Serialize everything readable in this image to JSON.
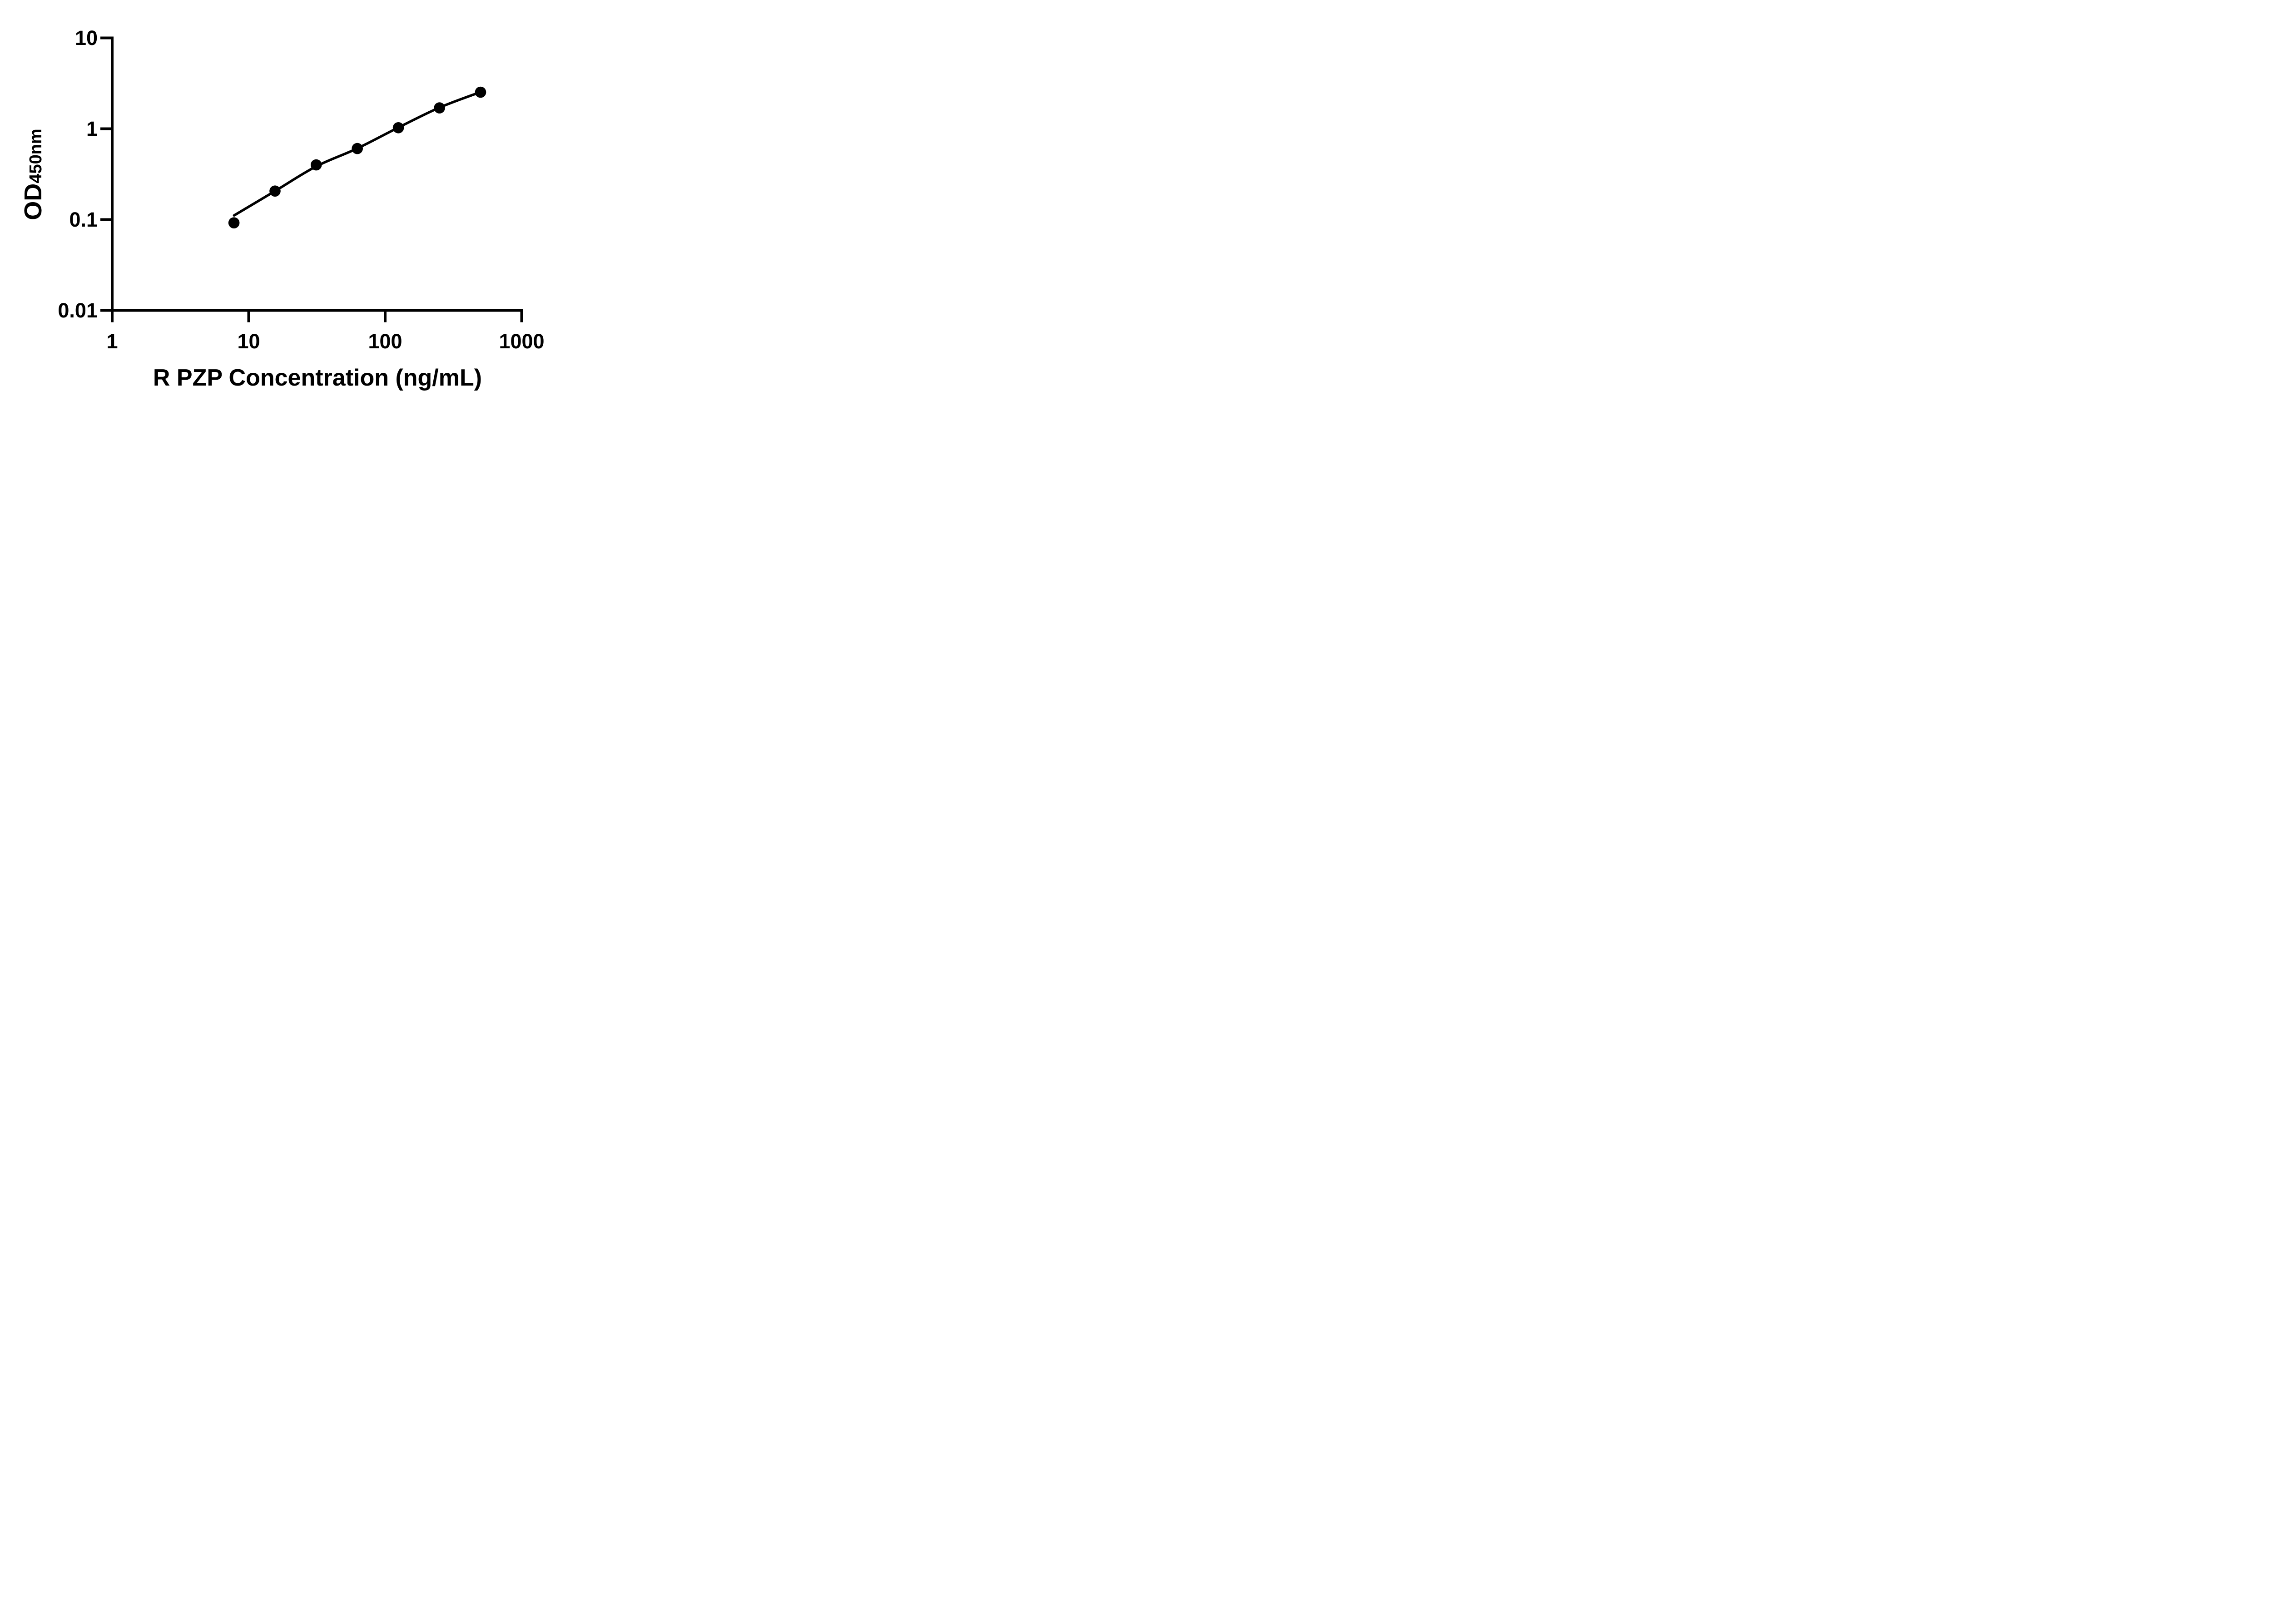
{
  "figure": {
    "background": "#ffffff",
    "ink": "#000000"
  },
  "chart_data": {
    "type": "scatter",
    "title": "",
    "xlabel": "R PZP Concentration (ng/mL)",
    "ylabel": "OD450nm",
    "ylabel_parts": {
      "main": "OD",
      "sub": "450nm"
    },
    "x_scale": "log",
    "y_scale": "log",
    "xlim": [
      1,
      1000
    ],
    "ylim": [
      0.01,
      10
    ],
    "grid": false,
    "legend": null,
    "x_ticks": [
      {
        "value": 1,
        "label": "1"
      },
      {
        "value": 10,
        "label": "10"
      },
      {
        "value": 100,
        "label": "100"
      },
      {
        "value": 1000,
        "label": "1000"
      }
    ],
    "y_ticks": [
      {
        "value": 10,
        "label": "10"
      },
      {
        "value": 1,
        "label": "1"
      },
      {
        "value": 0.1,
        "label": "0.1"
      },
      {
        "value": 0.01,
        "label": "0.01"
      }
    ],
    "series": [
      {
        "name": "standard-curve-points",
        "marker": "circle",
        "marker_color": "#000000",
        "marker_radius_px": 12.3,
        "points": [
          {
            "x": 7.8,
            "y": 0.092
          },
          {
            "x": 15.6,
            "y": 0.206
          },
          {
            "x": 31.25,
            "y": 0.4
          },
          {
            "x": 62.5,
            "y": 0.605
          },
          {
            "x": 125,
            "y": 1.026
          },
          {
            "x": 250,
            "y": 1.696
          },
          {
            "x": 500,
            "y": 2.525
          }
        ]
      }
    ],
    "fit_curve": {
      "name": "fitted-line",
      "color": "#000000",
      "points": [
        [
          7.82,
          0.111
        ],
        [
          15.6,
          0.206
        ],
        [
          31.2,
          0.385
        ],
        [
          62.2,
          0.605
        ],
        [
          124,
          1.026
        ],
        [
          248,
          1.7
        ],
        [
          497,
          2.53
        ]
      ]
    }
  }
}
